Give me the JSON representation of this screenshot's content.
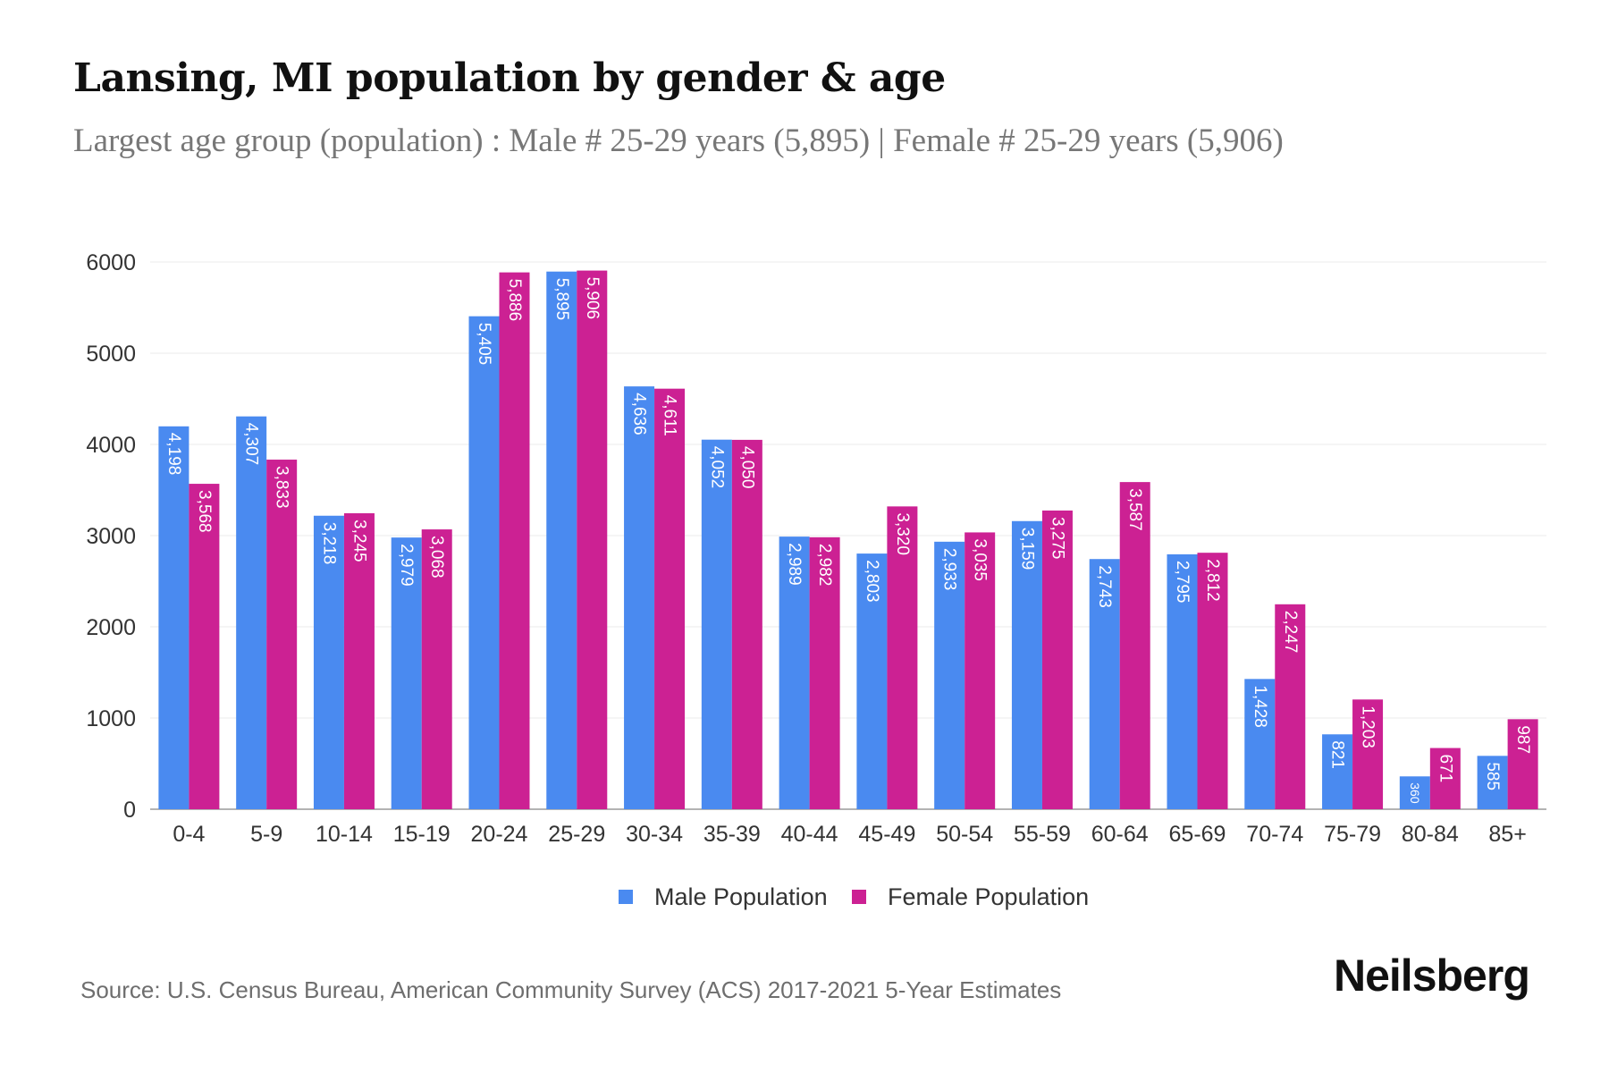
{
  "title": "Lansing, MI population by gender & age",
  "subtitle": "Largest age group (population) : Male # 25-29 years (5,895) | Female # 25-29 years (5,906)",
  "source": "Source: U.S. Census Bureau, American Community Survey (ACS) 2017-2021 5-Year Estimates",
  "brand": "Neilsberg",
  "chart_data": {
    "type": "bar",
    "title": "Lansing, MI population by gender & age",
    "xlabel": "",
    "ylabel": "",
    "ylim": [
      0,
      6000
    ],
    "yticks": [
      0,
      1000,
      2000,
      3000,
      4000,
      5000,
      6000
    ],
    "grid": true,
    "legend": "bottom-center",
    "categories": [
      "0-4",
      "5-9",
      "10-14",
      "15-19",
      "20-24",
      "25-29",
      "30-34",
      "35-39",
      "40-44",
      "45-49",
      "50-54",
      "55-59",
      "60-64",
      "65-69",
      "70-74",
      "75-79",
      "80-84",
      "85+"
    ],
    "series": [
      {
        "name": "Male Population",
        "color": "#4a8af0",
        "values": [
          4198,
          4307,
          3218,
          2979,
          5405,
          5895,
          4636,
          4052,
          2989,
          2803,
          2933,
          3159,
          2743,
          2795,
          1428,
          821,
          360,
          585
        ],
        "labels": [
          "4,198",
          "4,307",
          "3,218",
          "2,979",
          "5,405",
          "5,895",
          "4,636",
          "4,052",
          "2,989",
          "2,803",
          "2,933",
          "3,159",
          "2,743",
          "2,795",
          "1,428",
          "821",
          "360",
          "585"
        ]
      },
      {
        "name": "Female Population",
        "color": "#cc2193",
        "values": [
          3568,
          3833,
          3245,
          3068,
          5886,
          5906,
          4611,
          4050,
          2982,
          3320,
          3035,
          3275,
          3587,
          2812,
          2247,
          1203,
          671,
          987
        ],
        "labels": [
          "3,568",
          "3,833",
          "3,245",
          "3,068",
          "5,886",
          "5,906",
          "4,611",
          "4,050",
          "2,982",
          "3,320",
          "3,035",
          "3,275",
          "3,587",
          "2,812",
          "2,247",
          "1,203",
          "671",
          "987"
        ]
      }
    ]
  }
}
